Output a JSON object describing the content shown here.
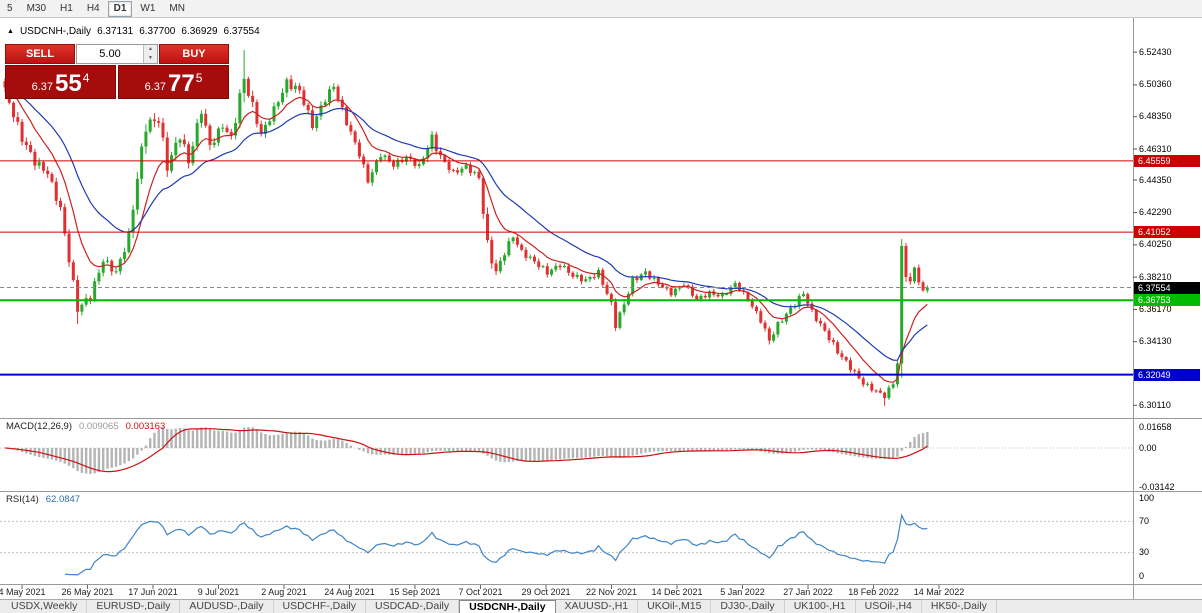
{
  "toolbar": {
    "timeframes": [
      "5",
      "M30",
      "H1",
      "H4",
      "D1",
      "W1",
      "MN"
    ],
    "active": "D1"
  },
  "header": {
    "marker": "▲",
    "symbol": "USDCNH-,Daily",
    "open": "6.37131",
    "high": "6.37700",
    "low": "6.36929",
    "close": "6.37554"
  },
  "trade": {
    "sell_label": "SELL",
    "buy_label": "BUY",
    "volume": "5.00",
    "sell_price": {
      "prefix": "6.37",
      "big": "55",
      "sup": "4"
    },
    "buy_price": {
      "prefix": "6.37",
      "big": "77",
      "sup": "5"
    }
  },
  "price_axis_labels": [
    "6.52430",
    "6.50360",
    "6.48350",
    "6.46310",
    "6.44350",
    "6.42290",
    "6.40250",
    "6.38210",
    "6.36170",
    "6.34130",
    "6.32090",
    "6.30110"
  ],
  "levels": [
    {
      "price": 6.45559,
      "label": "6.45559",
      "color": "#cc0000",
      "width": 1
    },
    {
      "price": 6.41052,
      "label": "6.41052",
      "color": "#cc0000",
      "width": 1
    },
    {
      "price": 6.36753,
      "label": "6.36753",
      "color": "#00bb00",
      "width": 2
    },
    {
      "price": 6.32049,
      "label": "6.32049",
      "color": "#0000cc",
      "width": 2
    }
  ],
  "current_price": {
    "price": 6.37554,
    "label": "6.37554",
    "color": "#000000"
  },
  "macd": {
    "title": "MACD(12,26,9)",
    "main_value": "0.009065",
    "signal_value": "0.003163",
    "axis_labels": [
      "0.01658",
      "0.00",
      "-0.03142"
    ]
  },
  "rsi": {
    "title": "RSI(14)",
    "value": "62.0847",
    "axis_labels": [
      "100",
      "70",
      "30",
      "0"
    ],
    "levels": [
      70,
      30
    ]
  },
  "time_axis": [
    "4 May 2021",
    "26 May 2021",
    "17 Jun 2021",
    "9 Jul 2021",
    "2 Aug 2021",
    "24 Aug 2021",
    "15 Sep 2021",
    "7 Oct 2021",
    "29 Oct 2021",
    "22 Nov 2021",
    "14 Dec 2021",
    "5 Jan 2022",
    "27 Jan 2022",
    "18 Feb 2022",
    "14 Mar 2022"
  ],
  "tabs": [
    {
      "label": "USDX,Weekly",
      "active": false
    },
    {
      "label": "EURUSD-,Daily",
      "active": false
    },
    {
      "label": "AUDUSD-,Daily",
      "active": false
    },
    {
      "label": "USDCHF-,Daily",
      "active": false
    },
    {
      "label": "USDCAD-,Daily",
      "active": false
    },
    {
      "label": "USDCNH-,Daily",
      "active": true
    },
    {
      "label": "XAUUSD-,H1",
      "active": false
    },
    {
      "label": "UKOil-,M15",
      "active": false
    },
    {
      "label": "DJ30-,Daily",
      "active": false
    },
    {
      "label": "UK100-,H1",
      "active": false
    },
    {
      "label": "USOil-,H4",
      "active": false
    },
    {
      "label": "HK50-,Daily",
      "active": false
    }
  ],
  "chart_data": {
    "type": "candlestick",
    "symbol": "USDCNH-,Daily",
    "x_range": [
      "4 May 2021",
      "14 Mar 2022"
    ],
    "y_range": [
      6.2937,
      6.532
    ],
    "last_close": 6.37554,
    "indicators": {
      "macd_params": [
        12,
        26,
        9
      ],
      "rsi_period": 14
    },
    "colors": {
      "up": "#28a82c",
      "down": "#e03030",
      "ma_fast": "#cc2222",
      "ma_slow": "#1f3bb3",
      "macd_hist": "#b4b4b4",
      "macd_signal": "#cc1111",
      "rsi_line": "#3d85c8"
    },
    "close_anchors": [
      [
        0,
        6.5,
        0.01
      ],
      [
        4,
        6.47,
        0.01
      ],
      [
        7,
        6.455,
        0.009
      ],
      [
        10,
        6.448,
        0.008
      ],
      [
        13,
        6.425,
        0.009
      ],
      [
        17,
        6.362,
        0.009
      ],
      [
        20,
        6.37,
        0.008
      ],
      [
        23,
        6.393,
        0.008
      ],
      [
        26,
        6.385,
        0.008
      ],
      [
        29,
        6.408,
        0.01
      ],
      [
        31,
        6.445,
        0.014
      ],
      [
        33,
        6.478,
        0.014
      ],
      [
        36,
        6.482,
        0.012
      ],
      [
        38,
        6.452,
        0.012
      ],
      [
        41,
        6.472,
        0.011
      ],
      [
        43,
        6.455,
        0.01
      ],
      [
        46,
        6.488,
        0.01
      ],
      [
        48,
        6.465,
        0.01
      ],
      [
        51,
        6.478,
        0.008
      ],
      [
        53,
        6.47,
        0.008
      ],
      [
        56,
        6.508,
        0.018
      ],
      [
        58,
        6.49,
        0.01
      ],
      [
        60,
        6.472,
        0.008
      ],
      [
        63,
        6.488,
        0.008
      ],
      [
        66,
        6.505,
        0.009
      ],
      [
        69,
        6.5,
        0.008
      ],
      [
        72,
        6.478,
        0.008
      ],
      [
        75,
        6.495,
        0.008
      ],
      [
        77,
        6.503,
        0.008
      ],
      [
        80,
        6.48,
        0.007
      ],
      [
        83,
        6.46,
        0.007
      ],
      [
        85,
        6.443,
        0.007
      ],
      [
        88,
        6.46,
        0.007
      ],
      [
        91,
        6.453,
        0.006
      ],
      [
        94,
        6.458,
        0.006
      ],
      [
        97,
        6.452,
        0.006
      ],
      [
        100,
        6.47,
        0.009
      ],
      [
        102,
        6.458,
        0.008
      ],
      [
        105,
        6.448,
        0.006
      ],
      [
        108,
        6.452,
        0.006
      ],
      [
        111,
        6.445,
        0.006
      ],
      [
        113,
        6.402,
        0.013
      ],
      [
        115,
        6.385,
        0.009
      ],
      [
        117,
        6.398,
        0.008
      ],
      [
        119,
        6.408,
        0.006
      ],
      [
        121,
        6.398,
        0.006
      ],
      [
        124,
        6.392,
        0.006
      ],
      [
        127,
        6.385,
        0.006
      ],
      [
        130,
        6.39,
        0.006
      ],
      [
        133,
        6.383,
        0.006
      ],
      [
        136,
        6.38,
        0.006
      ],
      [
        139,
        6.385,
        0.006
      ],
      [
        142,
        6.365,
        0.007
      ],
      [
        143,
        6.352,
        0.007
      ],
      [
        145,
        6.365,
        0.006
      ],
      [
        147,
        6.38,
        0.006
      ],
      [
        150,
        6.385,
        0.006
      ],
      [
        153,
        6.378,
        0.005
      ],
      [
        156,
        6.372,
        0.005
      ],
      [
        159,
        6.378,
        0.005
      ],
      [
        162,
        6.368,
        0.005
      ],
      [
        165,
        6.372,
        0.005
      ],
      [
        168,
        6.37,
        0.005
      ],
      [
        171,
        6.378,
        0.005
      ],
      [
        174,
        6.368,
        0.005
      ],
      [
        177,
        6.355,
        0.006
      ],
      [
        179,
        6.342,
        0.006
      ],
      [
        181,
        6.352,
        0.006
      ],
      [
        184,
        6.362,
        0.006
      ],
      [
        187,
        6.372,
        0.006
      ],
      [
        189,
        6.36,
        0.006
      ],
      [
        192,
        6.348,
        0.006
      ],
      [
        195,
        6.335,
        0.006
      ],
      [
        198,
        6.325,
        0.006
      ],
      [
        201,
        6.315,
        0.005
      ],
      [
        204,
        6.31,
        0.005
      ],
      [
        206,
        6.307,
        0.005
      ],
      [
        208,
        6.315,
        0.005
      ],
      [
        209,
        6.328,
        0.006
      ],
      [
        210,
        6.398,
        0.016
      ],
      [
        211,
        6.385,
        0.01
      ],
      [
        212,
        6.378,
        0.008
      ],
      [
        213,
        6.388,
        0.007
      ],
      [
        214,
        6.38,
        0.006
      ],
      [
        215,
        6.372,
        0.006
      ],
      [
        216,
        6.37554,
        0.005
      ]
    ],
    "wick_overrides": {
      "17": {
        "low": 6.3525
      },
      "56": {
        "high": 6.5257
      },
      "143": {
        "low": 6.3495
      },
      "179": {
        "low": 6.3395
      },
      "206": {
        "low": 6.3008
      },
      "210": {
        "high": 6.4028,
        "low": 6.3185
      },
      "211": {
        "high": 6.3995
      }
    }
  }
}
